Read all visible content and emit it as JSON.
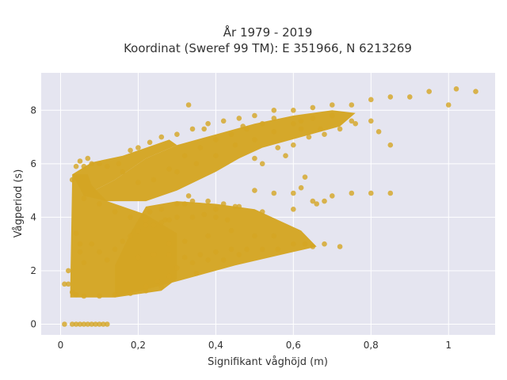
{
  "chart_data": {
    "type": "scatter",
    "title": "År 1979 - 2019",
    "subtitle": "Koordinat (Sweref 99 TM): E 351966, N 6213269",
    "xlabel": "Signifikant våghöjd (m)",
    "ylabel": "Vågperiod (s)",
    "xlim": [
      -0.05,
      1.12
    ],
    "ylim": [
      -0.4,
      9.4
    ],
    "x_ticks": [
      0,
      0.2,
      0.4,
      0.6,
      0.8,
      1
    ],
    "x_tick_labels": [
      "0",
      "0,2",
      "0,4",
      "0,6",
      "0,8",
      "1"
    ],
    "y_ticks": [
      0,
      2,
      4,
      6,
      8
    ],
    "y_tick_labels": [
      "0",
      "2",
      "4",
      "6",
      "8"
    ],
    "grid": true,
    "marker_color": "#d4a523",
    "background_color": "#e5e5f0",
    "series": [
      {
        "points": [
          [
            0.01,
            0.0
          ],
          [
            0.03,
            0.0
          ],
          [
            0.04,
            0.0
          ],
          [
            0.05,
            0.0
          ],
          [
            0.06,
            0.0
          ],
          [
            0.07,
            0.0
          ],
          [
            0.08,
            0.0
          ],
          [
            0.09,
            0.0
          ],
          [
            0.1,
            0.0
          ],
          [
            0.11,
            0.0
          ],
          [
            0.12,
            0.0
          ],
          [
            0.01,
            1.5
          ],
          [
            0.02,
            2.0
          ],
          [
            0.02,
            1.5
          ],
          [
            0.03,
            1.2
          ],
          [
            0.04,
            1.1
          ],
          [
            0.06,
            1.05
          ],
          [
            0.1,
            1.05
          ],
          [
            0.14,
            1.1
          ],
          [
            0.18,
            1.15
          ],
          [
            0.22,
            1.25
          ],
          [
            0.26,
            1.4
          ],
          [
            0.03,
            5.4
          ],
          [
            0.04,
            5.9
          ],
          [
            0.05,
            6.1
          ],
          [
            0.06,
            5.9
          ],
          [
            0.07,
            6.2
          ],
          [
            0.08,
            6.0
          ],
          [
            0.1,
            6.0
          ],
          [
            0.12,
            5.9
          ],
          [
            0.15,
            6.0
          ],
          [
            0.18,
            6.5
          ],
          [
            0.2,
            6.6
          ],
          [
            0.23,
            6.8
          ],
          [
            0.26,
            7.0
          ],
          [
            0.3,
            7.1
          ],
          [
            0.34,
            7.3
          ],
          [
            0.38,
            7.5
          ],
          [
            0.42,
            7.6
          ],
          [
            0.46,
            7.7
          ],
          [
            0.5,
            7.8
          ],
          [
            0.55,
            8.0
          ],
          [
            0.6,
            8.0
          ],
          [
            0.65,
            8.1
          ],
          [
            0.7,
            8.2
          ],
          [
            0.75,
            8.2
          ],
          [
            0.8,
            8.4
          ],
          [
            0.85,
            8.5
          ],
          [
            0.9,
            8.5
          ],
          [
            0.95,
            8.7
          ],
          [
            1.0,
            8.2
          ],
          [
            1.02,
            8.8
          ],
          [
            1.07,
            8.7
          ],
          [
            0.37,
            7.3
          ],
          [
            0.33,
            8.2
          ],
          [
            0.47,
            7.4
          ],
          [
            0.55,
            7.7
          ],
          [
            0.62,
            7.3
          ],
          [
            0.67,
            7.3
          ],
          [
            0.75,
            7.6
          ],
          [
            0.82,
            7.2
          ],
          [
            0.85,
            6.7
          ],
          [
            0.06,
            4.7
          ],
          [
            0.1,
            4.5
          ],
          [
            0.14,
            4.2
          ],
          [
            0.18,
            4.0
          ],
          [
            0.22,
            3.9
          ],
          [
            0.26,
            4.3
          ],
          [
            0.3,
            4.5
          ],
          [
            0.34,
            4.6
          ],
          [
            0.38,
            4.6
          ],
          [
            0.42,
            4.5
          ],
          [
            0.45,
            4.4
          ],
          [
            0.5,
            5.0
          ],
          [
            0.55,
            4.9
          ],
          [
            0.6,
            4.9
          ],
          [
            0.65,
            4.6
          ],
          [
            0.7,
            4.8
          ],
          [
            0.75,
            4.9
          ],
          [
            0.8,
            4.9
          ],
          [
            0.85,
            4.9
          ],
          [
            0.62,
            5.1
          ],
          [
            0.28,
            3.0
          ],
          [
            0.32,
            3.1
          ],
          [
            0.38,
            3.3
          ],
          [
            0.44,
            3.5
          ],
          [
            0.5,
            3.3
          ],
          [
            0.55,
            3.3
          ],
          [
            0.6,
            3.0
          ],
          [
            0.63,
            3.0
          ],
          [
            0.68,
            3.0
          ],
          [
            0.72,
            2.9
          ],
          [
            0.65,
            2.9
          ],
          [
            0.2,
            2.5
          ],
          [
            0.24,
            2.6
          ],
          [
            0.28,
            2.6
          ],
          [
            0.32,
            2.5
          ],
          [
            0.36,
            2.6
          ],
          [
            0.4,
            2.7
          ],
          [
            0.44,
            2.8
          ],
          [
            0.48,
            2.8
          ],
          [
            0.52,
            2.8
          ],
          [
            0.56,
            2.8
          ],
          [
            0.3,
            2.1
          ],
          [
            0.34,
            2.3
          ],
          [
            0.38,
            2.4
          ],
          [
            0.42,
            2.4
          ],
          [
            0.46,
            2.6
          ],
          [
            0.35,
            1.9
          ],
          [
            0.28,
            1.8
          ],
          [
            0.25,
            1.6
          ],
          [
            0.22,
            1.4
          ],
          [
            0.23,
            4.2
          ],
          [
            0.27,
            3.9
          ],
          [
            0.33,
            4.8
          ],
          [
            0.32,
            4.5
          ],
          [
            0.4,
            4.3
          ],
          [
            0.46,
            4.4
          ],
          [
            0.52,
            4.2
          ],
          [
            0.6,
            4.3
          ],
          [
            0.66,
            4.5
          ],
          [
            0.68,
            4.6
          ],
          [
            0.63,
            5.5
          ],
          [
            0.3,
            5.7
          ],
          [
            0.35,
            6.0
          ],
          [
            0.4,
            6.3
          ],
          [
            0.45,
            6.7
          ],
          [
            0.5,
            6.9
          ],
          [
            0.55,
            7.2
          ],
          [
            0.6,
            7.5
          ],
          [
            0.62,
            7.6
          ],
          [
            0.65,
            7.7
          ],
          [
            0.7,
            7.8
          ],
          [
            0.16,
            5.7
          ],
          [
            0.2,
            5.3
          ],
          [
            0.24,
            5.4
          ],
          [
            0.28,
            5.8
          ],
          [
            0.32,
            6.3
          ],
          [
            0.36,
            6.6
          ],
          [
            0.4,
            6.9
          ],
          [
            0.44,
            7.1
          ],
          [
            0.48,
            7.3
          ],
          [
            0.52,
            7.5
          ],
          [
            0.04,
            3.4
          ],
          [
            0.05,
            3.0
          ],
          [
            0.05,
            2.7
          ],
          [
            0.06,
            2.3
          ],
          [
            0.08,
            3.0
          ],
          [
            0.1,
            2.7
          ],
          [
            0.12,
            2.4
          ],
          [
            0.14,
            2.8
          ],
          [
            0.16,
            3.1
          ],
          [
            0.18,
            3.3
          ],
          [
            0.2,
            3.5
          ],
          [
            0.22,
            3.7
          ],
          [
            0.24,
            3.7
          ],
          [
            0.26,
            3.8
          ],
          [
            0.28,
            3.9
          ],
          [
            0.3,
            4.0
          ],
          [
            0.34,
            4.0
          ],
          [
            0.37,
            4.1
          ],
          [
            0.4,
            4.0
          ],
          [
            0.43,
            3.9
          ],
          [
            0.5,
            6.2
          ],
          [
            0.52,
            6.0
          ],
          [
            0.56,
            6.6
          ],
          [
            0.58,
            6.3
          ],
          [
            0.6,
            6.7
          ],
          [
            0.64,
            7.0
          ],
          [
            0.68,
            7.1
          ],
          [
            0.72,
            7.3
          ],
          [
            0.76,
            7.5
          ],
          [
            0.8,
            7.6
          ]
        ]
      }
    ]
  }
}
